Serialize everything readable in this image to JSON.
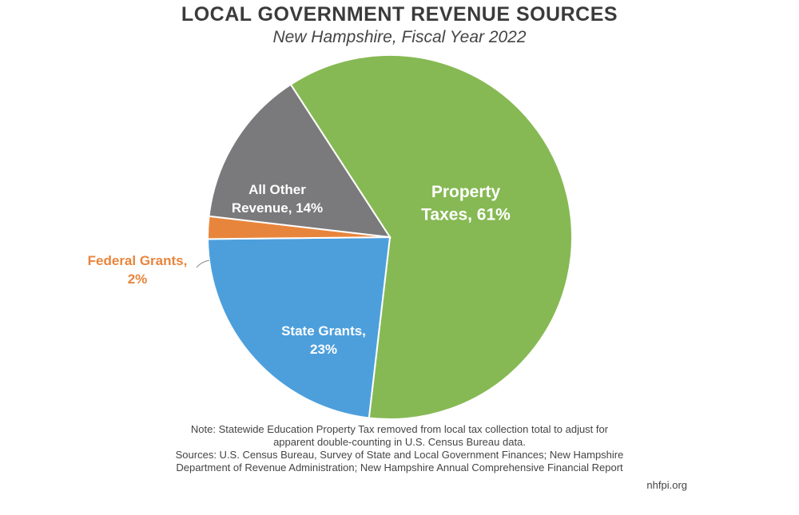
{
  "title": "LOCAL GOVERNMENT REVENUE SOURCES",
  "subtitle": "New Hampshire, Fiscal Year 2022",
  "chart_data": {
    "type": "pie",
    "title": "LOCAL GOVERNMENT REVENUE SOURCES",
    "subtitle": "New Hampshire, Fiscal Year 2022",
    "slices": [
      {
        "label_lines": [
          "Property",
          "Taxes, 61%"
        ],
        "value": 61,
        "color": "#86b954",
        "label_color": "#ffffff"
      },
      {
        "label_lines": [
          "State Grants,",
          "23%"
        ],
        "value": 23,
        "color": "#4d9fdc",
        "label_color": "#ffffff"
      },
      {
        "label_lines": [
          "Federal Grants,",
          "2%"
        ],
        "value": 2,
        "color": "#e8853c",
        "label_color": "#e8853c"
      },
      {
        "label_lines": [
          "All Other",
          "Revenue, 14%"
        ],
        "value": 14,
        "color": "#7a797b",
        "label_color": "#ffffff"
      }
    ]
  },
  "notes": [
    "Note: Statewide Education Property Tax removed from local tax collection total to adjust for",
    "apparent double-counting in U.S. Census Bureau data.",
    "Sources: U.S. Census Bureau, Survey of State and Local Government Finances; New Hampshire",
    "Department of Revenue Administration; New Hampshire Annual Comprehensive Financial Report"
  ],
  "source_url": "nhfpi.org"
}
